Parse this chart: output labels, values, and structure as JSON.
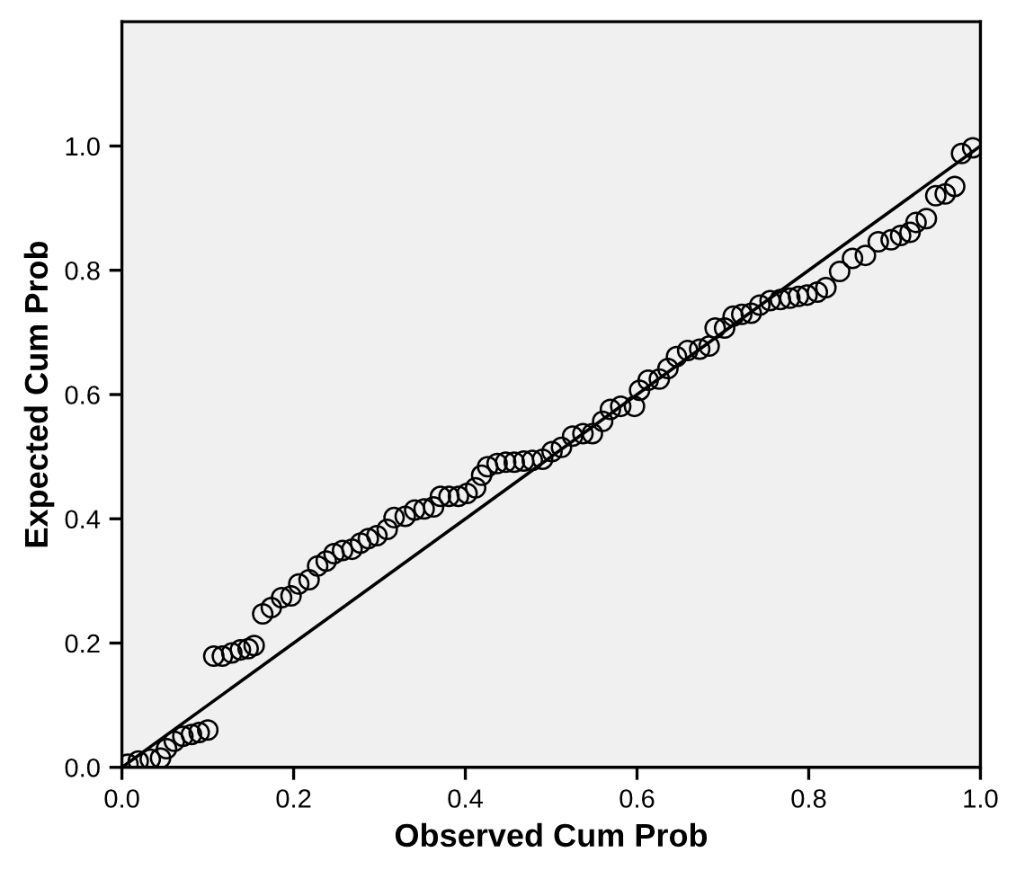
{
  "chart_data": {
    "type": "scatter",
    "xlabel": "Observed Cum Prob",
    "ylabel": "Expected Cum Prob",
    "xlim": [
      0,
      1
    ],
    "ylim": [
      0,
      1.2
    ],
    "xticks": [
      {
        "value": 0,
        "label": "0.0"
      },
      {
        "value": 0.2,
        "label": "0.2"
      },
      {
        "value": 0.4,
        "label": "0.4"
      },
      {
        "value": 0.6,
        "label": "0.6"
      },
      {
        "value": 0.8,
        "label": "0.8"
      },
      {
        "value": 1,
        "label": "1.0"
      }
    ],
    "yticks": [
      {
        "value": 0,
        "label": "0.0"
      },
      {
        "value": 0.2,
        "label": "0.2"
      },
      {
        "value": 0.4,
        "label": "0.4"
      },
      {
        "value": 0.6,
        "label": "0.6"
      },
      {
        "value": 0.8,
        "label": "0.8"
      },
      {
        "value": 1,
        "label": "1.0"
      }
    ],
    "grid": false,
    "marker": "circle",
    "series": [
      {
        "type": "line",
        "marker": "none",
        "color": "#000000",
        "x": [
          0,
          1
        ],
        "values": [
          0,
          1
        ]
      },
      {
        "color": "#000000",
        "x": [
          0.007,
          0.019,
          0.033,
          0.045,
          0.052,
          0.061,
          0.071,
          0.081,
          0.09,
          0.1,
          0.107,
          0.117,
          0.128,
          0.138,
          0.147,
          0.154,
          0.164,
          0.174,
          0.186,
          0.197,
          0.206,
          0.218,
          0.228,
          0.238,
          0.247,
          0.257,
          0.268,
          0.278,
          0.287,
          0.297,
          0.309,
          0.317,
          0.33,
          0.341,
          0.352,
          0.363,
          0.371,
          0.381,
          0.392,
          0.402,
          0.412,
          0.419,
          0.426,
          0.437,
          0.447,
          0.457,
          0.468,
          0.478,
          0.49,
          0.501,
          0.512,
          0.525,
          0.537,
          0.548,
          0.56,
          0.569,
          0.581,
          0.597,
          0.603,
          0.613,
          0.626,
          0.636,
          0.646,
          0.659,
          0.673,
          0.684,
          0.691,
          0.702,
          0.712,
          0.722,
          0.733,
          0.743,
          0.755,
          0.767,
          0.778,
          0.788,
          0.798,
          0.81,
          0.82,
          0.836,
          0.851,
          0.866,
          0.881,
          0.896,
          0.907,
          0.918,
          0.925,
          0.937,
          0.948,
          0.959,
          0.97,
          0.978,
          0.991
        ],
        "values": [
          0.005,
          0.01,
          0.013,
          0.015,
          0.03,
          0.042,
          0.05,
          0.053,
          0.056,
          0.06,
          0.179,
          0.179,
          0.184,
          0.189,
          0.191,
          0.196,
          0.247,
          0.257,
          0.273,
          0.276,
          0.295,
          0.302,
          0.324,
          0.332,
          0.344,
          0.349,
          0.351,
          0.361,
          0.368,
          0.373,
          0.383,
          0.402,
          0.404,
          0.414,
          0.416,
          0.419,
          0.436,
          0.436,
          0.436,
          0.441,
          0.45,
          0.47,
          0.484,
          0.489,
          0.491,
          0.491,
          0.493,
          0.494,
          0.496,
          0.508,
          0.515,
          0.533,
          0.537,
          0.537,
          0.557,
          0.576,
          0.581,
          0.581,
          0.607,
          0.623,
          0.625,
          0.642,
          0.661,
          0.671,
          0.673,
          0.678,
          0.707,
          0.707,
          0.726,
          0.729,
          0.731,
          0.744,
          0.751,
          0.753,
          0.755,
          0.758,
          0.76,
          0.765,
          0.772,
          0.798,
          0.819,
          0.824,
          0.846,
          0.849,
          0.856,
          0.861,
          0.877,
          0.883,
          0.92,
          0.923,
          0.935,
          0.988,
          0.997
        ]
      }
    ]
  }
}
